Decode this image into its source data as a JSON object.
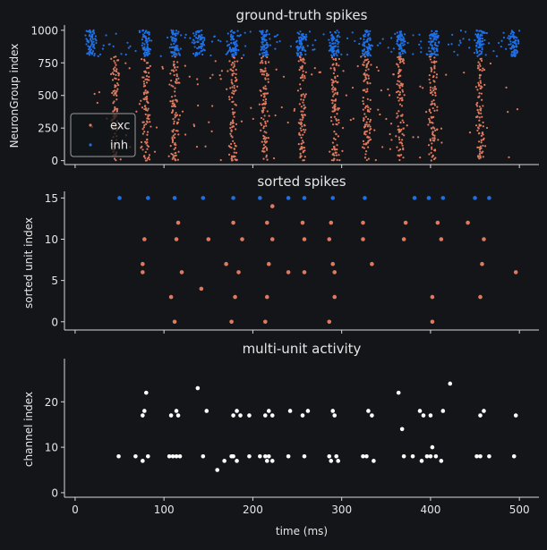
{
  "chart_data": [
    {
      "type": "scatter",
      "title": "ground-truth spikes",
      "ylabel": "NeuronGroup index",
      "xlim": [
        -12,
        522
      ],
      "ylim": [
        -30,
        1040
      ],
      "yticks": [
        0,
        250,
        500,
        750,
        1000
      ],
      "legend": {
        "position": "bottom-left",
        "entries": [
          {
            "label": "exc",
            "color": "#e07a5f"
          },
          {
            "label": "inh",
            "color": "#1f6fe5"
          }
        ]
      },
      "series": [
        {
          "name": "exc",
          "color": "#e07a5f",
          "burst_times": [
            45,
            80,
            112,
            178,
            213,
            255,
            292,
            328,
            366,
            403,
            456
          ],
          "y_range": [
            0,
            800
          ]
        },
        {
          "name": "inh",
          "color": "#1f6fe5",
          "burst_times": [
            18,
            80,
            112,
            140,
            178,
            213,
            255,
            292,
            328,
            366,
            403,
            456,
            493
          ],
          "y_range": [
            800,
            1000
          ]
        }
      ]
    },
    {
      "type": "scatter",
      "title": "sorted spikes",
      "ylabel": "sorted unit index",
      "xlim": [
        -12,
        522
      ],
      "ylim": [
        -1,
        15.8
      ],
      "yticks": [
        0,
        5,
        10,
        15
      ],
      "series": [
        {
          "name": "exc",
          "color": "#e07a5f",
          "points": [
            [
              112,
              0
            ],
            [
              176,
              0
            ],
            [
              214,
              0
            ],
            [
              286,
              0
            ],
            [
              402,
              0
            ],
            [
              108,
              3
            ],
            [
              180,
              3
            ],
            [
              216,
              3
            ],
            [
              292,
              3
            ],
            [
              402,
              3
            ],
            [
              456,
              3
            ],
            [
              142,
              4
            ],
            [
              120,
              6
            ],
            [
              76,
              6
            ],
            [
              184,
              6
            ],
            [
              240,
              6
            ],
            [
              258,
              6
            ],
            [
              292,
              6
            ],
            [
              76,
              7
            ],
            [
              170,
              7
            ],
            [
              218,
              7
            ],
            [
              290,
              7
            ],
            [
              334,
              7
            ],
            [
              458,
              7
            ],
            [
              78,
              10
            ],
            [
              114,
              10
            ],
            [
              150,
              10
            ],
            [
              188,
              10
            ],
            [
              222,
              10
            ],
            [
              258,
              10
            ],
            [
              286,
              10
            ],
            [
              324,
              10
            ],
            [
              370,
              10
            ],
            [
              412,
              10
            ],
            [
              460,
              10
            ],
            [
              116,
              12
            ],
            [
              178,
              12
            ],
            [
              216,
              12
            ],
            [
              256,
              12
            ],
            [
              288,
              12
            ],
            [
              324,
              12
            ],
            [
              372,
              12
            ],
            [
              408,
              12
            ],
            [
              442,
              12
            ],
            [
              222,
              14
            ],
            [
              496,
              6
            ]
          ]
        },
        {
          "name": "inh",
          "color": "#1f6fe5",
          "points": [
            [
              50,
              15
            ],
            [
              82,
              15
            ],
            [
              112,
              15
            ],
            [
              144,
              15
            ],
            [
              178,
              15
            ],
            [
              208,
              15
            ],
            [
              240,
              15
            ],
            [
              258,
              15
            ],
            [
              290,
              15
            ],
            [
              326,
              15
            ],
            [
              382,
              15
            ],
            [
              398,
              15
            ],
            [
              414,
              15
            ],
            [
              450,
              15
            ],
            [
              466,
              15
            ]
          ]
        }
      ]
    },
    {
      "type": "scatter",
      "title": "multi-unit activity",
      "xlabel": "time (ms)",
      "ylabel": "channel index",
      "xlim": [
        -12,
        522
      ],
      "ylim": [
        -1,
        29.5
      ],
      "xticks": [
        0,
        100,
        200,
        300,
        400,
        500
      ],
      "yticks": [
        0,
        10,
        20
      ],
      "series": [
        {
          "name": "multi-unit",
          "color": "#ffffff",
          "points": [
            [
              49,
              8
            ],
            [
              68,
              8
            ],
            [
              76,
              7
            ],
            [
              82,
              8
            ],
            [
              76,
              17
            ],
            [
              78,
              18
            ],
            [
              80,
              22
            ],
            [
              106,
              8
            ],
            [
              110,
              8
            ],
            [
              114,
              8
            ],
            [
              118,
              8
            ],
            [
              108,
              17
            ],
            [
              114,
              18
            ],
            [
              116,
              17
            ],
            [
              144,
              8
            ],
            [
              148,
              18
            ],
            [
              138,
              23
            ],
            [
              160,
              5
            ],
            [
              168,
              7
            ],
            [
              176,
              8
            ],
            [
              178,
              8
            ],
            [
              182,
              7
            ],
            [
              178,
              17
            ],
            [
              182,
              18
            ],
            [
              186,
              17
            ],
            [
              196,
              8
            ],
            [
              196,
              17
            ],
            [
              208,
              8
            ],
            [
              214,
              8
            ],
            [
              216,
              7
            ],
            [
              218,
              8
            ],
            [
              222,
              7
            ],
            [
              214,
              17
            ],
            [
              218,
              18
            ],
            [
              222,
              17
            ],
            [
              240,
              8
            ],
            [
              242,
              18
            ],
            [
              256,
              17
            ],
            [
              258,
              8
            ],
            [
              262,
              18
            ],
            [
              286,
              8
            ],
            [
              288,
              7
            ],
            [
              290,
              18
            ],
            [
              294,
              8
            ],
            [
              296,
              7
            ],
            [
              292,
              17
            ],
            [
              324,
              8
            ],
            [
              328,
              8
            ],
            [
              330,
              18
            ],
            [
              334,
              17
            ],
            [
              336,
              7
            ],
            [
              364,
              22
            ],
            [
              370,
              8
            ],
            [
              368,
              14
            ],
            [
              380,
              8
            ],
            [
              390,
              7
            ],
            [
              396,
              8
            ],
            [
              400,
              8
            ],
            [
              402,
              10
            ],
            [
              406,
              8
            ],
            [
              412,
              7
            ],
            [
              388,
              18
            ],
            [
              392,
              17
            ],
            [
              400,
              17
            ],
            [
              414,
              18
            ],
            [
              422,
              24
            ],
            [
              452,
              8
            ],
            [
              456,
              8
            ],
            [
              456,
              17
            ],
            [
              460,
              18
            ],
            [
              466,
              8
            ],
            [
              494,
              8
            ],
            [
              496,
              17
            ]
          ]
        }
      ]
    }
  ]
}
